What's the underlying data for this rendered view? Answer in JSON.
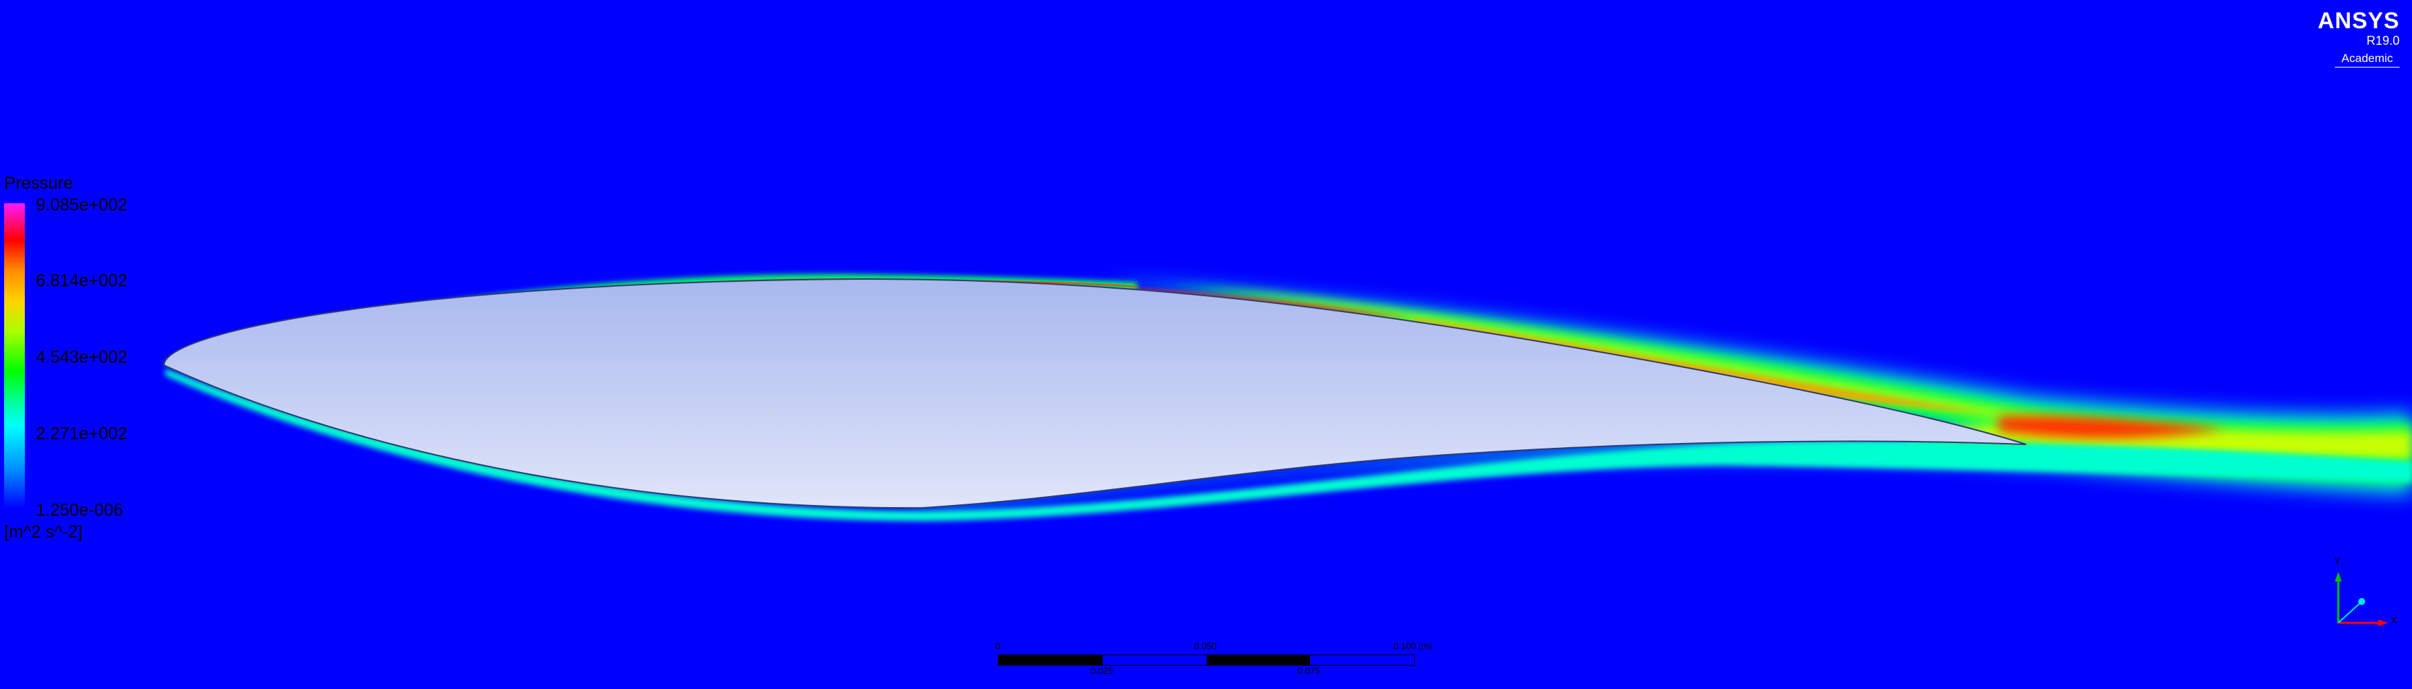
{
  "legend": {
    "title": "Pressure",
    "ticks": [
      "9.085e+002",
      "6.814e+002",
      "4.543e+002",
      "2.271e+002",
      "1.250e-006"
    ],
    "units": "[m^2 s^-2]"
  },
  "brand": {
    "name": "ANSYS",
    "version": "R19.0",
    "edition": "Academic"
  },
  "scale": {
    "top_labels": [
      "0",
      "0.050",
      "0.100 (m)"
    ],
    "bottom_labels": [
      "0.025",
      "0.075"
    ]
  },
  "triad": {
    "y_label": "Y",
    "x_label": "X"
  },
  "colors": {
    "background": "#0000ff",
    "airfoil_fill_top": "#a8b8ee",
    "airfoil_fill_bottom": "#d8e0f8",
    "high_pressure": "#ff0000",
    "mid_pressure": "#00ff00",
    "low_pressure": "#00ffff"
  }
}
